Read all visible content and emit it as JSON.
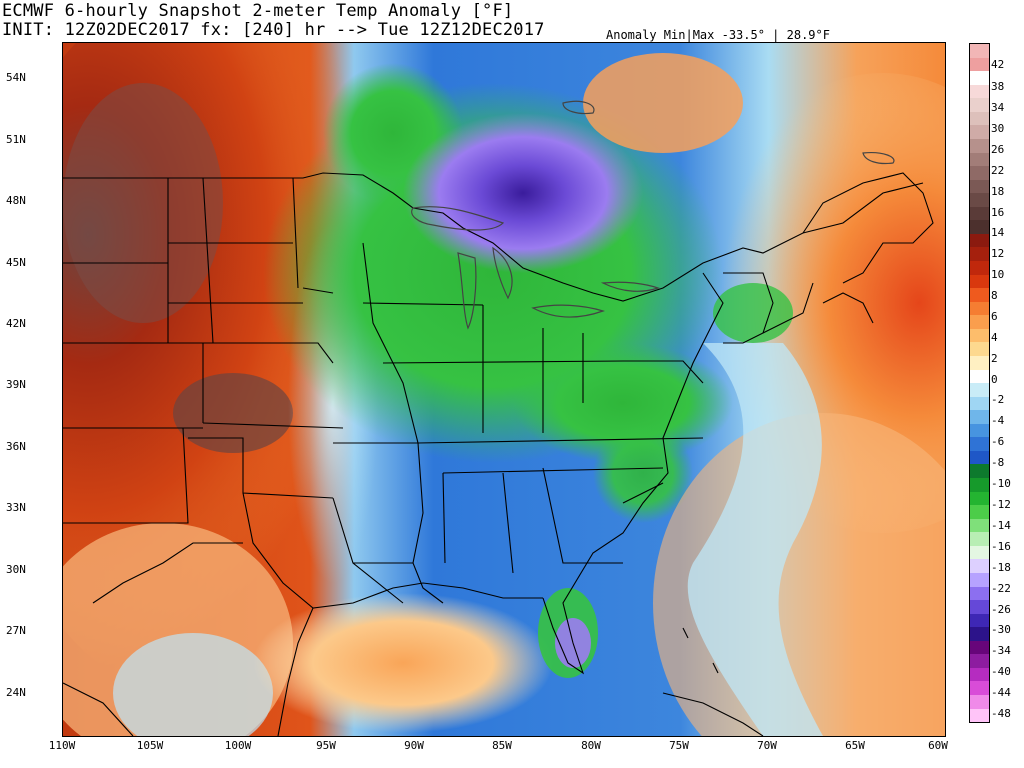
{
  "header": {
    "title_line1": "ECMWF 6-hourly Snapshot 2-meter Temp Anomaly [°F]",
    "title_line2": "INIT: 12Z02DEC2017 fx: [240] hr --> Tue 12Z12DEC2017",
    "minmax": "Anomaly Min|Max -33.5° | 28.9°F"
  },
  "map": {
    "lat_labels": [
      "54N",
      "51N",
      "48N",
      "45N",
      "42N",
      "39N",
      "36N",
      "33N",
      "30N",
      "27N",
      "24N"
    ],
    "lon_labels": [
      "110W",
      "105W",
      "100W",
      "95W",
      "90W",
      "85W",
      "80W",
      "75W",
      "70W",
      "65W",
      "60W"
    ]
  },
  "colorbar": {
    "labels": [
      "42",
      "38",
      "34",
      "30",
      "26",
      "22",
      "18",
      "16",
      "14",
      "12",
      "10",
      "8",
      "6",
      "4",
      "2",
      "0",
      "-2",
      "-4",
      "-6",
      "-8",
      "-10",
      "-12",
      "-14",
      "-16",
      "-18",
      "-22",
      "-26",
      "-30",
      "-34",
      "-40",
      "-44",
      "-48"
    ],
    "colors": [
      "#f2b6b6",
      "#ee9f9f",
      "#ffffff",
      "#f7d9d9",
      "#ead0cc",
      "#ddc0bb",
      "#cfaba7",
      "#b6918c",
      "#a27d78",
      "#8f6a66",
      "#7b5955",
      "#6a4a46",
      "#5a3b38",
      "#4c302d",
      "#8b1a0f",
      "#a5200d",
      "#c0280c",
      "#d9380e",
      "#ef5a1e",
      "#f57d32",
      "#fa9e4d",
      "#fdbd6b",
      "#fdd98f",
      "#fff0c2",
      "#ffffff",
      "#c9ecf7",
      "#9fd6f3",
      "#6fb6ea",
      "#4794e0",
      "#2f73d6",
      "#1f57c7",
      "#0d7a2d",
      "#169a2b",
      "#24b431",
      "#4ccd49",
      "#7fe07a",
      "#b8eeb4",
      "#e4f7e2",
      "#ddd0ff",
      "#b6a2ff",
      "#8c6ff0",
      "#6548d8",
      "#3e27b5",
      "#2c138a",
      "#67057a",
      "#8d1ca0",
      "#b52cc0",
      "#d94cd8",
      "#f08ae9",
      "#ffc4f8"
    ]
  }
}
